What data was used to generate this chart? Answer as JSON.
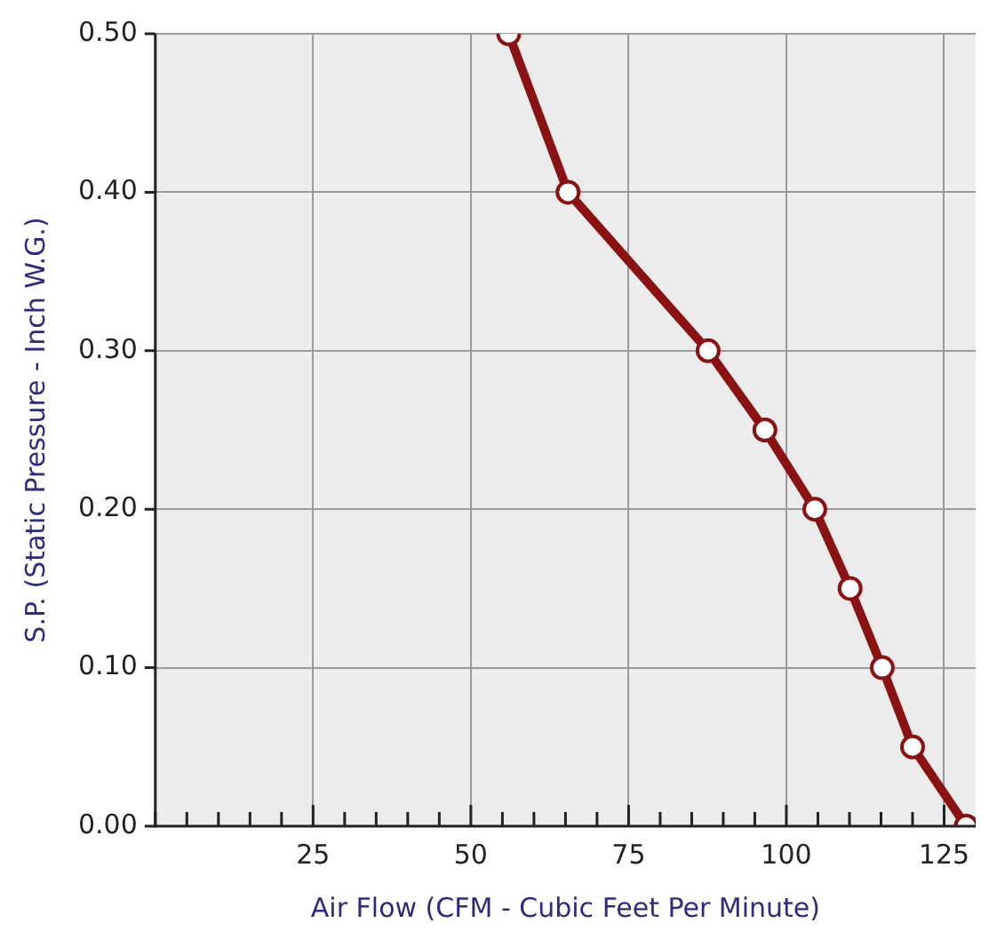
{
  "chart_data": {
    "type": "line",
    "xlabel": "Air Flow (CFM - Cubic Feet Per Minute)",
    "ylabel": "S.P. (Static Pressure - Inch W.G.)",
    "x": [
      56,
      65.4,
      87.6,
      96.6,
      104.5,
      110.1,
      115.2,
      120,
      128.5
    ],
    "series": [
      {
        "color": "#8b1212",
        "values": [
          0.5,
          0.4,
          0.3,
          0.25,
          0.2,
          0.15,
          0.1,
          0.05,
          0
        ]
      }
    ],
    "xlim": [
      0,
      130
    ],
    "xticks": [
      {
        "value": 0,
        "label": null
      },
      {
        "value": 5,
        "label": null
      },
      {
        "value": 10,
        "label": null
      },
      {
        "value": 15,
        "label": null
      },
      {
        "value": 20,
        "label": null
      },
      25,
      {
        "value": 30,
        "label": null
      },
      {
        "value": 35,
        "label": null
      },
      {
        "value": 40,
        "label": null
      },
      {
        "value": 45,
        "label": null
      },
      50,
      {
        "value": 55,
        "label": null
      },
      {
        "value": 60,
        "label": null
      },
      {
        "value": 65,
        "label": null
      },
      {
        "value": 70,
        "label": null
      },
      75,
      {
        "value": 80,
        "label": null
      },
      {
        "value": 85,
        "label": null
      },
      {
        "value": 90,
        "label": null
      },
      {
        "value": 95,
        "label": null
      },
      100,
      {
        "value": 105,
        "label": null
      },
      {
        "value": 110,
        "label": null
      },
      {
        "value": 115,
        "label": null
      },
      {
        "value": 120,
        "label": null
      },
      125
    ],
    "ylim": [
      0,
      0.5
    ],
    "yticks": [
      {
        "value": 0,
        "label": "0.00"
      },
      {
        "value": 0.1,
        "label": "0.10"
      },
      {
        "value": 0.2,
        "label": "0.20"
      },
      {
        "value": 0.3,
        "label": "0.30"
      },
      {
        "value": 0.4,
        "label": "0.40"
      },
      {
        "value": 0.5,
        "label": "0.50"
      }
    ],
    "grid": true,
    "marker": "circle",
    "line_style": "solid"
  }
}
